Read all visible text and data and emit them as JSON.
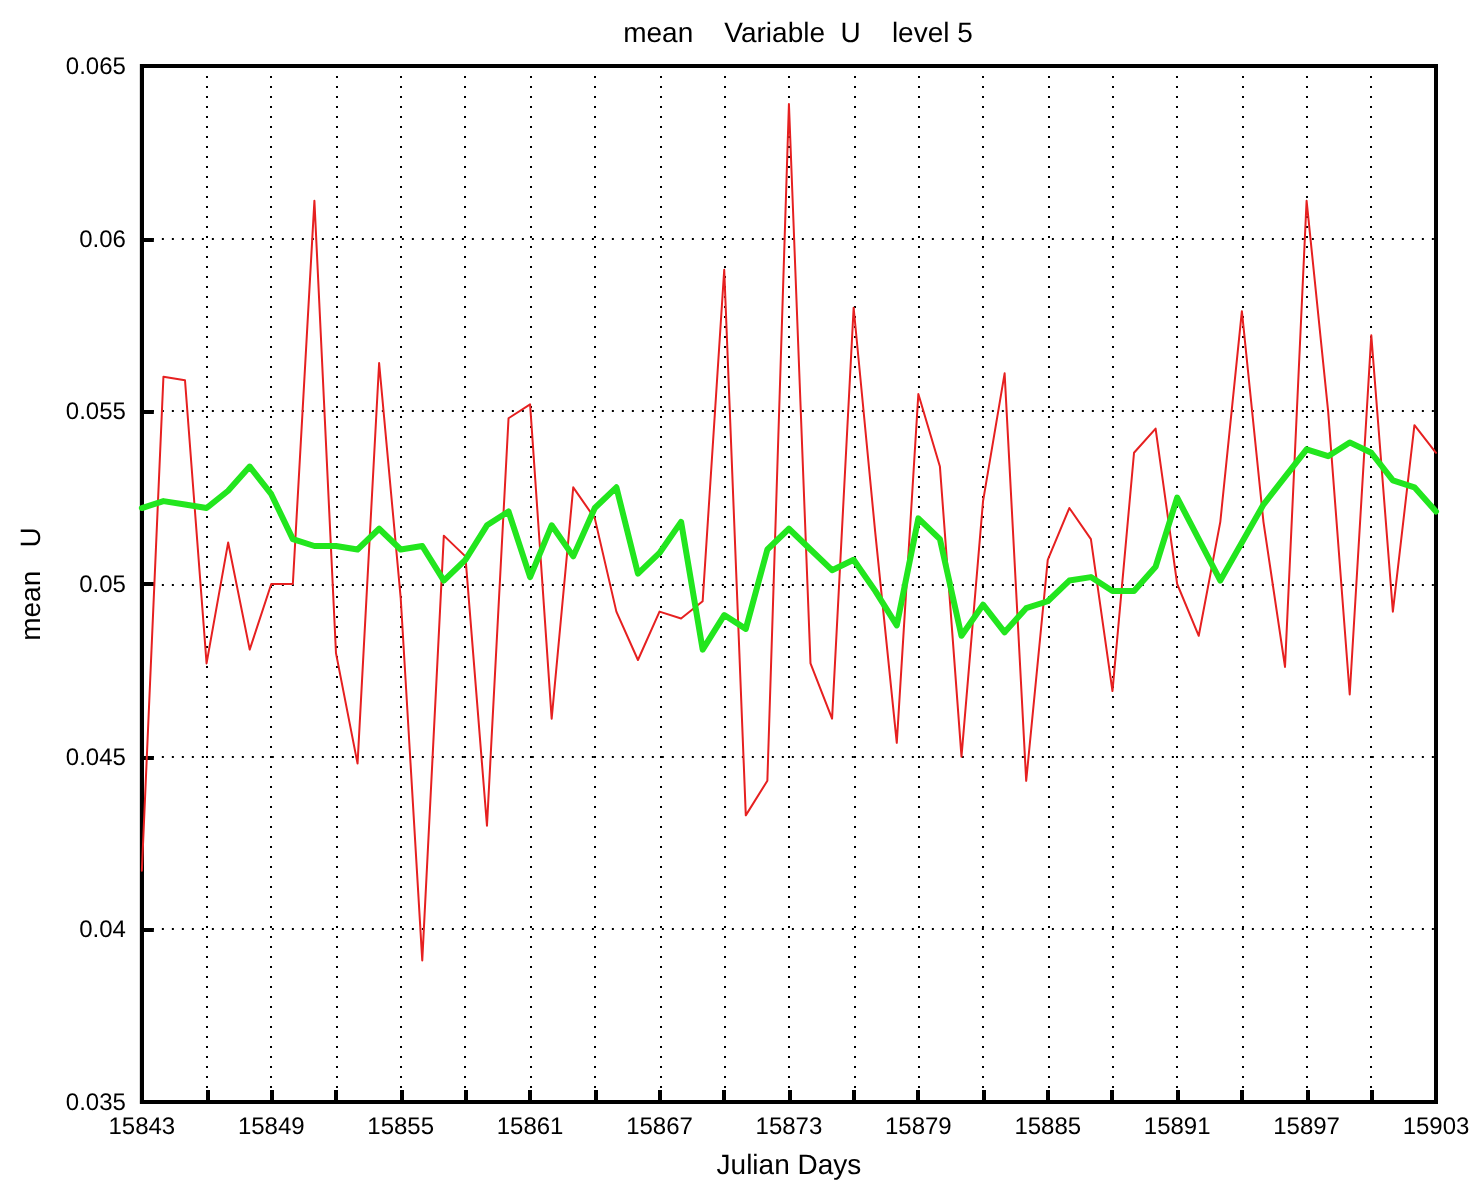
{
  "chart_data": {
    "type": "line",
    "title": "mean    Variable  U    level 5",
    "xlabel": "Julian Days",
    "ylabel": "mean   U",
    "x": [
      15843,
      15844,
      15845,
      15846,
      15847,
      15848,
      15849,
      15850,
      15851,
      15852,
      15853,
      15854,
      15855,
      15856,
      15857,
      15858,
      15859,
      15860,
      15861,
      15862,
      15863,
      15864,
      15865,
      15866,
      15867,
      15868,
      15869,
      15870,
      15871,
      15872,
      15873,
      15874,
      15875,
      15876,
      15877,
      15878,
      15879,
      15880,
      15881,
      15882,
      15883,
      15884,
      15885,
      15886,
      15887,
      15888,
      15889,
      15890,
      15891,
      15892,
      15893,
      15894,
      15895,
      15896,
      15897,
      15898,
      15899,
      15900,
      15901,
      15902,
      15903
    ],
    "series": [
      {
        "color": "#e62020",
        "values": [
          0.0417,
          0.056,
          0.0559,
          0.0477,
          0.0512,
          0.0481,
          0.05,
          0.05,
          0.0611,
          0.048,
          0.0448,
          0.0564,
          0.0496,
          0.0391,
          0.0514,
          0.0508,
          0.043,
          0.0548,
          0.0552,
          0.0461,
          0.0528,
          0.0519,
          0.0492,
          0.0478,
          0.0492,
          0.049,
          0.0495,
          0.0591,
          0.0433,
          0.0443,
          0.0639,
          0.0477,
          0.0461,
          0.058,
          0.0515,
          0.0454,
          0.0555,
          0.0534,
          0.045,
          0.0524,
          0.0561,
          0.0443,
          0.0507,
          0.0522,
          0.0513,
          0.0469,
          0.0538,
          0.0545,
          0.05,
          0.0485,
          0.0518,
          0.0579,
          0.0518,
          0.0476,
          0.0611,
          0.055,
          0.0468,
          0.0572,
          0.0492,
          0.0546,
          0.0538
        ]
      },
      {
        "color": "#22e61e",
        "values": [
          0.0522,
          0.0524,
          0.0523,
          0.0522,
          0.0527,
          0.0534,
          0.0526,
          0.0513,
          0.0511,
          0.0511,
          0.051,
          0.0516,
          0.051,
          0.0511,
          0.0501,
          0.0507,
          0.0517,
          0.0521,
          0.0502,
          0.0517,
          0.0508,
          0.0522,
          0.0528,
          0.0503,
          0.0509,
          0.0518,
          0.0481,
          0.0491,
          0.0487,
          0.051,
          0.0516,
          0.051,
          0.0504,
          0.0507,
          0.0498,
          0.0488,
          0.0519,
          0.0513,
          0.0485,
          0.0494,
          0.0486,
          0.0493,
          0.0495,
          0.0501,
          0.0502,
          0.0498,
          0.0498,
          0.0505,
          0.0525,
          0.0513,
          0.0501,
          0.0512,
          0.0523,
          0.0531,
          0.0539,
          0.0537,
          0.0541,
          0.0538,
          0.053,
          0.0528,
          0.0521
        ]
      }
    ],
    "xlim": [
      15843,
      15903
    ],
    "xticks": [
      15843,
      {
        "value": 15846,
        "label": null
      },
      15849,
      {
        "value": 15852,
        "label": null
      },
      15855,
      {
        "value": 15858,
        "label": null
      },
      15861,
      {
        "value": 15864,
        "label": null
      },
      15867,
      {
        "value": 15870,
        "label": null
      },
      15873,
      {
        "value": 15876,
        "label": null
      },
      15879,
      {
        "value": 15882,
        "label": null
      },
      15885,
      {
        "value": 15888,
        "label": null
      },
      15891,
      {
        "value": 15894,
        "label": null
      },
      15897,
      {
        "value": 15900,
        "label": null
      },
      15903
    ],
    "ylim": [
      0.035,
      0.065
    ],
    "yticks": [
      0.035,
      0.04,
      0.045,
      0.05,
      0.055,
      0.06,
      0.065
    ],
    "grid": true,
    "marker": "none",
    "line_style": "solid"
  }
}
